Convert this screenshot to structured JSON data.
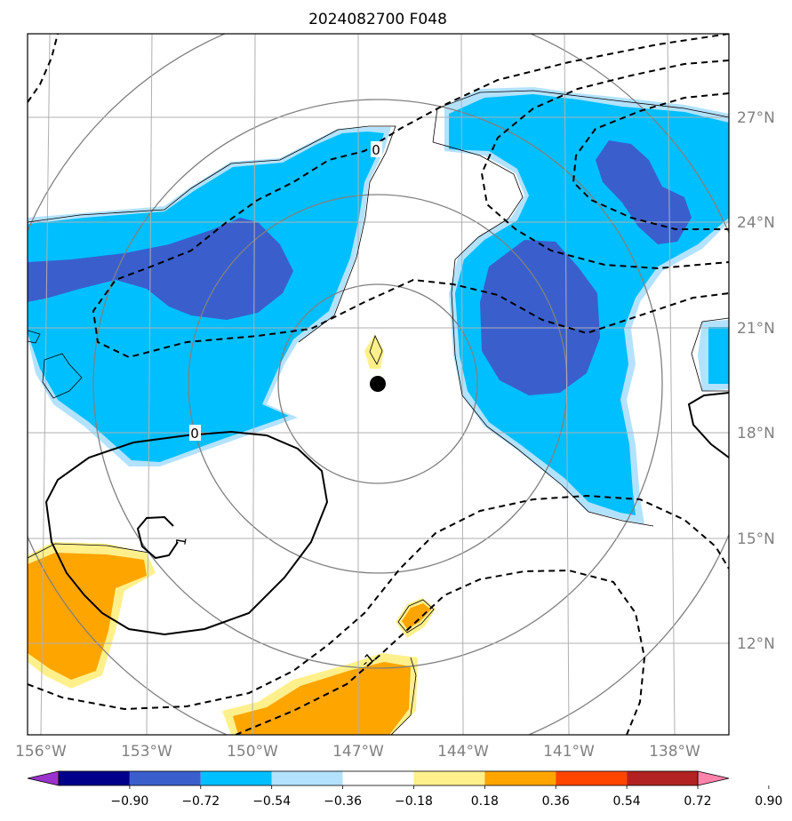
{
  "title": "2024082700 F048",
  "map": {
    "lon_labels": [
      "156°W",
      "153°W",
      "150°W",
      "147°W",
      "144°W",
      "141°W",
      "138°W"
    ],
    "lat_labels": [
      "27°N",
      "24°N",
      "21°N",
      "18°N",
      "15°N",
      "12°N"
    ],
    "center_marker": "storm-center-dot",
    "contour_labels": [
      "0",
      "0",
      "1",
      "-1"
    ]
  },
  "colorbar": {
    "ticks": [
      "−0.90",
      "−0.72",
      "−0.54",
      "−0.36",
      "−0.18",
      "0.18",
      "0.36",
      "0.54",
      "0.72",
      "0.90"
    ],
    "colors": [
      "#9a32cd",
      "#00008b",
      "#3a5fcd",
      "#00bfff",
      "#b2e2ff",
      "#ffffff",
      "#fff08c",
      "#ffa500",
      "#ff4500",
      "#b22222",
      "#ff82ab"
    ]
  },
  "shading_colors": {
    "strong_negative": "#3a5fcd",
    "negative": "#00bfff",
    "weak_negative": "#b2e2ff",
    "weak_positive": "#fff08c",
    "positive": "#ffa500"
  }
}
